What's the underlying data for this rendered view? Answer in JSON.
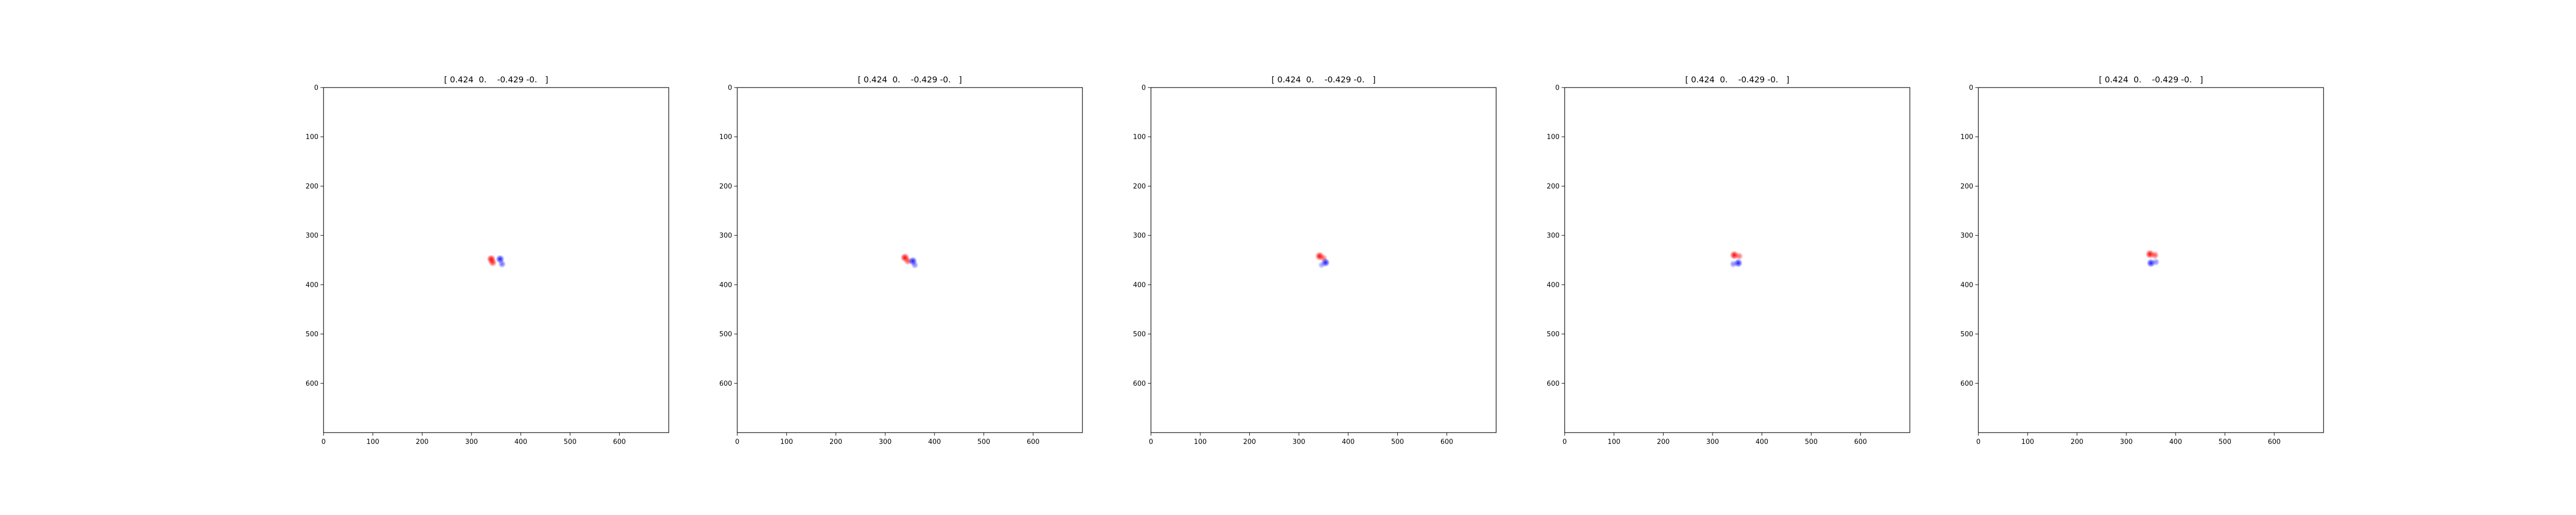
{
  "figure": {
    "background": "#ffffff"
  },
  "chart_data": [
    {
      "type": "heatmap",
      "title": "[ 0.424  0.    -0.429 -0.   ]",
      "xlim": [
        0,
        700
      ],
      "ylim": [
        700,
        0
      ],
      "xticks": [
        "0",
        "100",
        "200",
        "300",
        "400",
        "500",
        "600"
      ],
      "yticks": [
        "0",
        "100",
        "200",
        "300",
        "400",
        "500",
        "600"
      ],
      "colormap": "bwr",
      "colors": {
        "positive": "#ff0000",
        "negative": "#0000ff",
        "zero": "#ffffff"
      },
      "grid": false,
      "blobs": [
        {
          "x": 340,
          "y": 348,
          "value": 1.0
        },
        {
          "x": 343,
          "y": 355,
          "value": 0.8
        },
        {
          "x": 358,
          "y": 348,
          "value": -0.9
        },
        {
          "x": 362,
          "y": 358,
          "value": -0.6
        }
      ]
    },
    {
      "type": "heatmap",
      "title": "[ 0.424  0.    -0.429 -0.   ]",
      "xlim": [
        0,
        700
      ],
      "ylim": [
        700,
        0
      ],
      "xticks": [
        "0",
        "100",
        "200",
        "300",
        "400",
        "500",
        "600"
      ],
      "yticks": [
        "0",
        "100",
        "200",
        "300",
        "400",
        "500",
        "600"
      ],
      "colormap": "bwr",
      "colors": {
        "positive": "#ff0000",
        "negative": "#0000ff",
        "zero": "#ffffff"
      },
      "grid": false,
      "blobs": [
        {
          "x": 340,
          "y": 345,
          "value": 1.0
        },
        {
          "x": 346,
          "y": 352,
          "value": 0.7
        },
        {
          "x": 356,
          "y": 352,
          "value": -0.9
        },
        {
          "x": 360,
          "y": 360,
          "value": -0.5
        }
      ]
    },
    {
      "type": "heatmap",
      "title": "[ 0.424  0.    -0.429 -0.   ]",
      "xlim": [
        0,
        700
      ],
      "ylim": [
        700,
        0
      ],
      "xticks": [
        "0",
        "100",
        "200",
        "300",
        "400",
        "500",
        "600"
      ],
      "yticks": [
        "0",
        "100",
        "200",
        "300",
        "400",
        "500",
        "600"
      ],
      "colormap": "bwr",
      "colors": {
        "positive": "#ff0000",
        "negative": "#0000ff",
        "zero": "#ffffff"
      },
      "grid": false,
      "blobs": [
        {
          "x": 342,
          "y": 342,
          "value": 1.0
        },
        {
          "x": 350,
          "y": 346,
          "value": 0.6
        },
        {
          "x": 354,
          "y": 355,
          "value": -0.9
        },
        {
          "x": 346,
          "y": 360,
          "value": -0.4
        }
      ]
    },
    {
      "type": "heatmap",
      "title": "[ 0.424  0.    -0.429 -0.   ]",
      "xlim": [
        0,
        700
      ],
      "ylim": [
        700,
        0
      ],
      "xticks": [
        "0",
        "100",
        "200",
        "300",
        "400",
        "500",
        "600"
      ],
      "yticks": [
        "0",
        "100",
        "200",
        "300",
        "400",
        "500",
        "600"
      ],
      "colormap": "bwr",
      "colors": {
        "positive": "#ff0000",
        "negative": "#0000ff",
        "zero": "#ffffff"
      },
      "grid": false,
      "blobs": [
        {
          "x": 344,
          "y": 340,
          "value": 1.0
        },
        {
          "x": 354,
          "y": 342,
          "value": 0.6
        },
        {
          "x": 352,
          "y": 356,
          "value": -0.9
        },
        {
          "x": 342,
          "y": 358,
          "value": -0.5
        }
      ]
    },
    {
      "type": "heatmap",
      "title": "[ 0.424  0.    -0.429 -0.   ]",
      "xlim": [
        0,
        700
      ],
      "ylim": [
        700,
        0
      ],
      "xticks": [
        "0",
        "100",
        "200",
        "300",
        "400",
        "500",
        "600"
      ],
      "yticks": [
        "0",
        "100",
        "200",
        "300",
        "400",
        "500",
        "600"
      ],
      "colormap": "bwr",
      "colors": {
        "positive": "#ff0000",
        "negative": "#0000ff",
        "zero": "#ffffff"
      },
      "grid": false,
      "blobs": [
        {
          "x": 348,
          "y": 338,
          "value": 1.0
        },
        {
          "x": 358,
          "y": 340,
          "value": 0.7
        },
        {
          "x": 350,
          "y": 356,
          "value": -0.9
        },
        {
          "x": 360,
          "y": 354,
          "value": -0.5
        }
      ]
    }
  ]
}
